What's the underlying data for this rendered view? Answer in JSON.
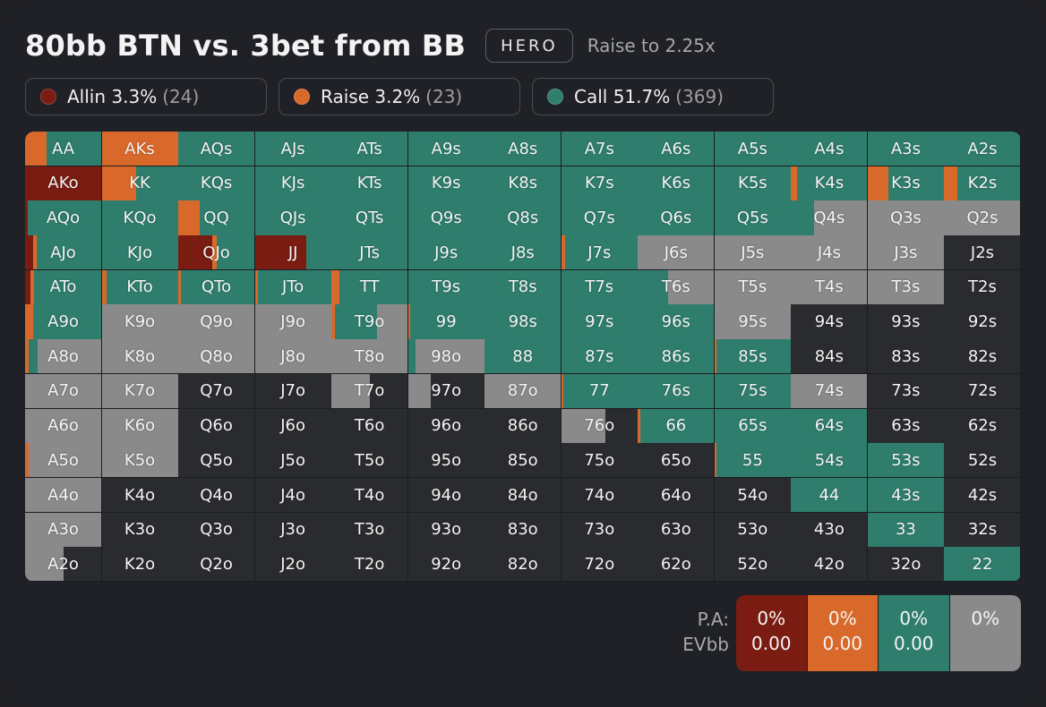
{
  "header": {
    "title": "80bb BTN vs. 3bet from BB",
    "badge": "HERO",
    "subtitle": "Raise to 2.25x"
  },
  "colors": {
    "allin": "#7a1c12",
    "raise": "#d9692a",
    "call": "#2f7e6d",
    "fold": "#8a8a8a",
    "empty": "#2a2b2e"
  },
  "legend": [
    {
      "name": "Allin",
      "percent": "3.3%",
      "count": "(24)",
      "color": "#7a1c12"
    },
    {
      "name": "Raise",
      "percent": "3.2%",
      "count": "(23)",
      "color": "#d9692a"
    },
    {
      "name": "Call",
      "percent": "51.7%",
      "count": "(369)",
      "color": "#2f7e6d"
    }
  ],
  "grid": {
    "rows": [
      [
        "AA",
        "AKs",
        "AQs",
        "AJs",
        "ATs",
        "A9s",
        "A8s",
        "A7s",
        "A6s",
        "A5s",
        "A4s",
        "A3s",
        "A2s"
      ],
      [
        "AKo",
        "KK",
        "KQs",
        "KJs",
        "KTs",
        "K9s",
        "K8s",
        "K7s",
        "K6s",
        "K5s",
        "K4s",
        "K3s",
        "K2s"
      ],
      [
        "AQo",
        "KQo",
        "QQ",
        "QJs",
        "QTs",
        "Q9s",
        "Q8s",
        "Q7s",
        "Q6s",
        "Q5s",
        "Q4s",
        "Q3s",
        "Q2s"
      ],
      [
        "AJo",
        "KJo",
        "QJo",
        "JJ",
        "JTs",
        "J9s",
        "J8s",
        "J7s",
        "J6s",
        "J5s",
        "J4s",
        "J3s",
        "J2s"
      ],
      [
        "ATo",
        "KTo",
        "QTo",
        "JTo",
        "TT",
        "T9s",
        "T8s",
        "T7s",
        "T6s",
        "T5s",
        "T4s",
        "T3s",
        "T2s"
      ],
      [
        "A9o",
        "K9o",
        "Q9o",
        "J9o",
        "T9o",
        "99",
        "98s",
        "97s",
        "96s",
        "95s",
        "94s",
        "93s",
        "92s"
      ],
      [
        "A8o",
        "K8o",
        "Q8o",
        "J8o",
        "T8o",
        "98o",
        "88",
        "87s",
        "86s",
        "85s",
        "84s",
        "83s",
        "82s"
      ],
      [
        "A7o",
        "K7o",
        "Q7o",
        "J7o",
        "T7o",
        "97o",
        "87o",
        "77",
        "76s",
        "75s",
        "74s",
        "73s",
        "72s"
      ],
      [
        "A6o",
        "K6o",
        "Q6o",
        "J6o",
        "T6o",
        "96o",
        "86o",
        "76o",
        "66",
        "65s",
        "64s",
        "63s",
        "62s"
      ],
      [
        "A5o",
        "K5o",
        "Q5o",
        "J5o",
        "T5o",
        "95o",
        "85o",
        "75o",
        "65o",
        "55",
        "54s",
        "53s",
        "52s"
      ],
      [
        "A4o",
        "K4o",
        "Q4o",
        "J4o",
        "T4o",
        "94o",
        "84o",
        "74o",
        "64o",
        "54o",
        "44",
        "43s",
        "42s"
      ],
      [
        "A3o",
        "K3o",
        "Q3o",
        "J3o",
        "T3o",
        "93o",
        "83o",
        "73o",
        "63o",
        "53o",
        "43o",
        "33",
        "32s"
      ],
      [
        "A2o",
        "K2o",
        "Q2o",
        "J2o",
        "T2o",
        "92o",
        "82o",
        "72o",
        "62o",
        "52o",
        "42o",
        "32o",
        "22"
      ]
    ],
    "frequencies": [
      [
        [
          0,
          0.28,
          0.72,
          0
        ],
        [
          0,
          1,
          0,
          0
        ],
        [
          0,
          0,
          1,
          0
        ],
        [
          0,
          0,
          1,
          0
        ],
        [
          0,
          0,
          1,
          0
        ],
        [
          0,
          0,
          1,
          0
        ],
        [
          0,
          0,
          1,
          0
        ],
        [
          0,
          0,
          1,
          0
        ],
        [
          0,
          0,
          1,
          0
        ],
        [
          0,
          0,
          1,
          0
        ],
        [
          0,
          0,
          1,
          0
        ],
        [
          0,
          0,
          1,
          0
        ],
        [
          0,
          0,
          1,
          0
        ]
      ],
      [
        [
          1,
          0,
          0,
          0
        ],
        [
          0,
          0.45,
          0.55,
          0
        ],
        [
          0,
          0,
          1,
          0
        ],
        [
          0,
          0,
          1,
          0
        ],
        [
          0,
          0,
          1,
          0
        ],
        [
          0,
          0,
          1,
          0
        ],
        [
          0,
          0,
          1,
          0
        ],
        [
          0,
          0,
          1,
          0
        ],
        [
          0,
          0,
          1,
          0
        ],
        [
          0,
          0,
          1,
          0
        ],
        [
          0,
          0.08,
          0.92,
          0
        ],
        [
          0,
          0.27,
          0.73,
          0
        ],
        [
          0,
          0.17,
          0.83,
          0
        ]
      ],
      [
        [
          0.03,
          0,
          0.97,
          0
        ],
        [
          0,
          0,
          1,
          0
        ],
        [
          0,
          0.28,
          0.72,
          0
        ],
        [
          0,
          0,
          1,
          0
        ],
        [
          0,
          0,
          1,
          0
        ],
        [
          0,
          0,
          1,
          0
        ],
        [
          0,
          0,
          1,
          0
        ],
        [
          0,
          0,
          1,
          0
        ],
        [
          0,
          0,
          1,
          0
        ],
        [
          0,
          0,
          1,
          0
        ],
        [
          0,
          0,
          0.3,
          0.7
        ],
        [
          0,
          0,
          0,
          1
        ],
        [
          0,
          0,
          0,
          1
        ]
      ],
      [
        [
          0.1,
          0.05,
          0.85,
          0
        ],
        [
          0,
          0,
          1,
          0
        ],
        [
          0.45,
          0.05,
          0.5,
          0
        ],
        [
          0.67,
          0,
          0.33,
          0
        ],
        [
          0,
          0,
          1,
          0
        ],
        [
          0,
          0,
          1,
          0
        ],
        [
          0,
          0,
          1,
          0
        ],
        [
          0,
          0.05,
          0.95,
          0
        ],
        [
          0,
          0,
          0,
          1
        ],
        [
          0,
          0,
          0,
          1
        ],
        [
          0,
          0,
          0,
          1
        ],
        [
          0,
          0,
          0,
          1
        ],
        [
          0,
          0,
          0,
          0
        ]
      ],
      [
        [
          0.07,
          0.05,
          0.88,
          0
        ],
        [
          0,
          0.06,
          0.94,
          0
        ],
        [
          0,
          0.04,
          0.96,
          0
        ],
        [
          0,
          0.04,
          0.96,
          0
        ],
        [
          0,
          0.1,
          0.9,
          0
        ],
        [
          0,
          0,
          1,
          0
        ],
        [
          0,
          0,
          1,
          0
        ],
        [
          0,
          0,
          1,
          0
        ],
        [
          0,
          0,
          0.4,
          0.6
        ],
        [
          0,
          0,
          0,
          1
        ],
        [
          0,
          0,
          0,
          1
        ],
        [
          0,
          0,
          0,
          1
        ],
        [
          0,
          0,
          0,
          0
        ]
      ],
      [
        [
          0,
          0.1,
          0.9,
          0
        ],
        [
          0,
          0,
          0,
          1
        ],
        [
          0,
          0,
          0,
          1
        ],
        [
          0,
          0,
          0,
          1
        ],
        [
          0,
          0.04,
          0.56,
          0.4
        ],
        [
          0,
          0.03,
          0.97,
          0
        ],
        [
          0,
          0,
          1,
          0
        ],
        [
          0,
          0,
          1,
          0
        ],
        [
          0,
          0,
          1,
          0
        ],
        [
          0,
          0,
          0,
          1
        ],
        [
          0,
          0,
          0,
          0
        ],
        [
          0,
          0,
          0,
          0
        ],
        [
          0,
          0,
          0,
          0
        ]
      ],
      [
        [
          0,
          0.05,
          0.12,
          0.83
        ],
        [
          0,
          0,
          0,
          1
        ],
        [
          0,
          0,
          0,
          1
        ],
        [
          0,
          0,
          0,
          1
        ],
        [
          0,
          0,
          0,
          1
        ],
        [
          0,
          0,
          0.1,
          0.9
        ],
        [
          0,
          0,
          1,
          0
        ],
        [
          0,
          0,
          1,
          0
        ],
        [
          0,
          0,
          1,
          0
        ],
        [
          0,
          0.03,
          0.97,
          0
        ],
        [
          0,
          0,
          0,
          0
        ],
        [
          0,
          0,
          0,
          0
        ],
        [
          0,
          0,
          0,
          0
        ]
      ],
      [
        [
          0,
          0,
          0,
          1
        ],
        [
          0,
          0,
          0,
          1
        ],
        [
          0,
          0,
          0,
          0
        ],
        [
          0,
          0,
          0,
          0
        ],
        [
          0,
          0,
          0,
          0.5
        ],
        [
          0,
          0,
          0,
          0.3
        ],
        [
          0,
          0,
          0,
          1
        ],
        [
          0,
          0.03,
          0.97,
          0
        ],
        [
          0,
          0,
          1,
          0
        ],
        [
          0,
          0,
          1,
          0
        ],
        [
          0,
          0,
          0,
          1
        ],
        [
          0,
          0,
          0,
          0
        ],
        [
          0,
          0,
          0,
          0
        ]
      ],
      [
        [
          0,
          0,
          0,
          1
        ],
        [
          0,
          0,
          0,
          1
        ],
        [
          0,
          0,
          0,
          0
        ],
        [
          0,
          0,
          0,
          0
        ],
        [
          0,
          0,
          0,
          0
        ],
        [
          0,
          0,
          0,
          0
        ],
        [
          0,
          0,
          0,
          0
        ],
        [
          0,
          0,
          0,
          0.58
        ],
        [
          0,
          0.03,
          0.97,
          0
        ],
        [
          0,
          0,
          1,
          0
        ],
        [
          0,
          0,
          1,
          0
        ],
        [
          0,
          0,
          0,
          0
        ],
        [
          0,
          0,
          0,
          0
        ]
      ],
      [
        [
          0,
          0.05,
          0,
          0.95
        ],
        [
          0,
          0,
          0,
          1
        ],
        [
          0,
          0,
          0,
          0
        ],
        [
          0,
          0,
          0,
          0
        ],
        [
          0,
          0,
          0,
          0
        ],
        [
          0,
          0,
          0,
          0
        ],
        [
          0,
          0,
          0,
          0
        ],
        [
          0,
          0,
          0,
          0
        ],
        [
          0,
          0,
          0,
          0
        ],
        [
          0,
          0.02,
          0.98,
          0
        ],
        [
          0,
          0,
          1,
          0
        ],
        [
          0,
          0,
          1,
          0
        ],
        [
          0,
          0,
          0,
          0
        ]
      ],
      [
        [
          0,
          0,
          0,
          1
        ],
        [
          0,
          0,
          0,
          0
        ],
        [
          0,
          0,
          0,
          0
        ],
        [
          0,
          0,
          0,
          0
        ],
        [
          0,
          0,
          0,
          0
        ],
        [
          0,
          0,
          0,
          0
        ],
        [
          0,
          0,
          0,
          0
        ],
        [
          0,
          0,
          0,
          0
        ],
        [
          0,
          0,
          0,
          0
        ],
        [
          0,
          0,
          0,
          0
        ],
        [
          0,
          0,
          1,
          0
        ],
        [
          0,
          0,
          1,
          0
        ],
        [
          0,
          0,
          0,
          0
        ]
      ],
      [
        [
          0,
          0,
          0,
          1
        ],
        [
          0,
          0,
          0,
          0
        ],
        [
          0,
          0,
          0,
          0
        ],
        [
          0,
          0,
          0,
          0
        ],
        [
          0,
          0,
          0,
          0
        ],
        [
          0,
          0,
          0,
          0
        ],
        [
          0,
          0,
          0,
          0
        ],
        [
          0,
          0,
          0,
          0
        ],
        [
          0,
          0,
          0,
          0
        ],
        [
          0,
          0,
          0,
          0
        ],
        [
          0,
          0,
          0,
          0
        ],
        [
          0,
          0,
          1,
          0
        ],
        [
          0,
          0,
          0,
          0
        ]
      ],
      [
        [
          0,
          0,
          0,
          0.5
        ],
        [
          0,
          0,
          0,
          0
        ],
        [
          0,
          0,
          0,
          0
        ],
        [
          0,
          0,
          0,
          0
        ],
        [
          0,
          0,
          0,
          0
        ],
        [
          0,
          0,
          0,
          0
        ],
        [
          0,
          0,
          0,
          0
        ],
        [
          0,
          0,
          0,
          0
        ],
        [
          0,
          0,
          0,
          0
        ],
        [
          0,
          0,
          0,
          0
        ],
        [
          0,
          0,
          0,
          0
        ],
        [
          0,
          0,
          0,
          0
        ],
        [
          0,
          0,
          1,
          0
        ]
      ]
    ]
  },
  "stats": {
    "row_labels": [
      "P.A:",
      "EVbb"
    ],
    "columns": [
      {
        "percent": "0%",
        "ev": "0.00",
        "color": "#7a1c12"
      },
      {
        "percent": "0%",
        "ev": "0.00",
        "color": "#d9692a"
      },
      {
        "percent": "0%",
        "ev": "0.00",
        "color": "#2f7e6d"
      },
      {
        "percent": "0%",
        "ev": "",
        "color": "#8a8a8a"
      }
    ]
  }
}
